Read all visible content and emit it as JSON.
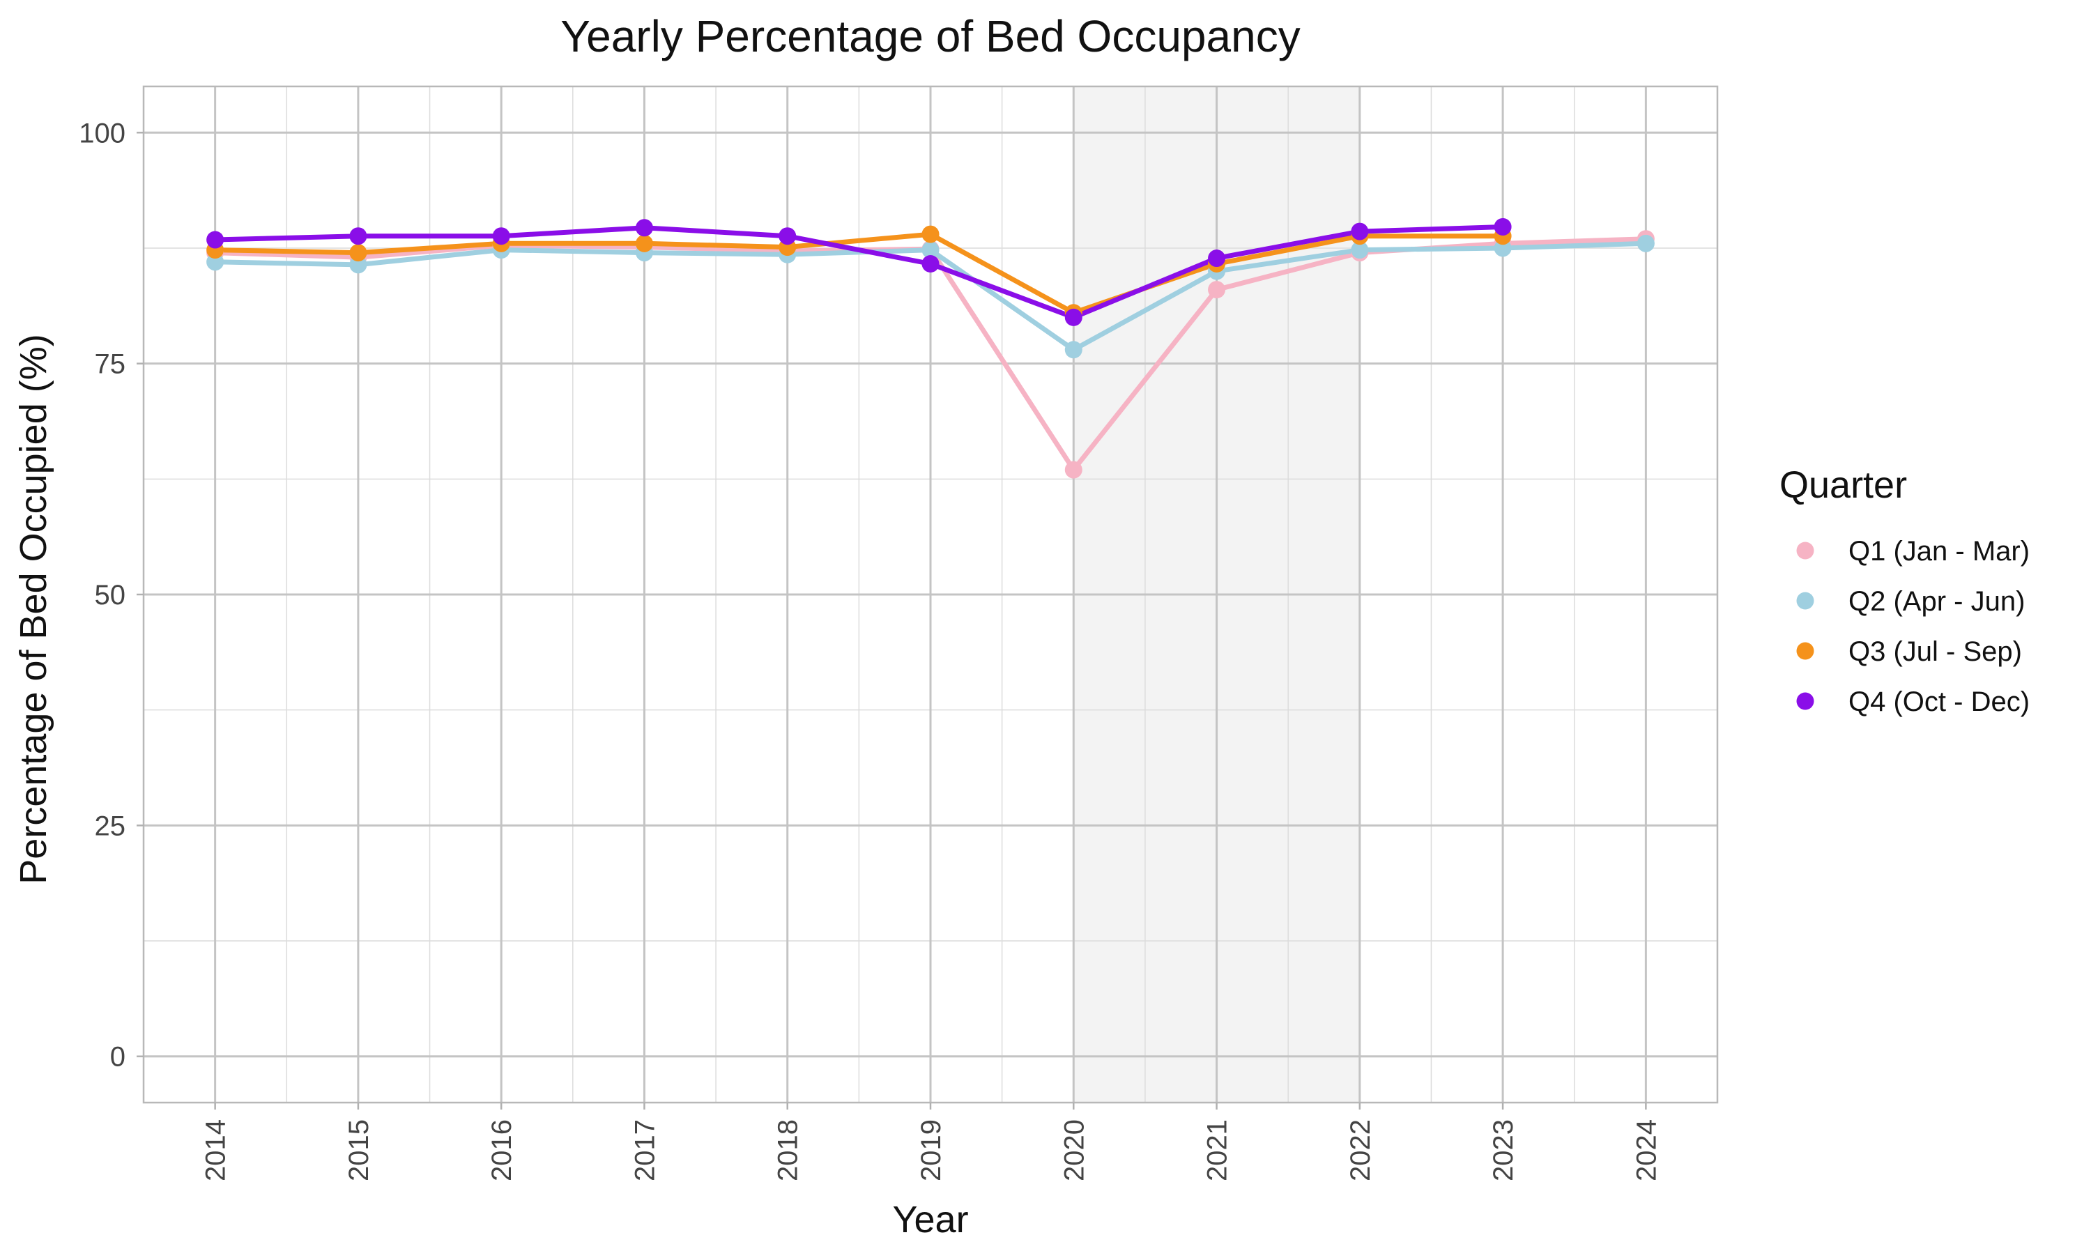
{
  "chart_data": {
    "type": "line",
    "title": "Yearly Percentage of Bed Occupancy",
    "xlabel": "Year",
    "ylabel": "Percentage of Bed Occupied (%)",
    "x": [
      2014,
      2015,
      2016,
      2017,
      2018,
      2019,
      2020,
      2021,
      2022,
      2023,
      2024
    ],
    "xlim": [
      2013.5,
      2024.5
    ],
    "ylim": [
      -5,
      105
    ],
    "yticks": [
      0,
      25,
      50,
      75,
      100
    ],
    "grid": true,
    "shaded_region": {
      "from": 2020,
      "to": 2022,
      "color": "#f3f3f3"
    },
    "legend": {
      "title": "Quarter",
      "position": "right"
    },
    "series": [
      {
        "name": "Q1 (Jan - Mar)",
        "color": "#f6b3c4",
        "values": [
          87.0,
          86.5,
          87.8,
          87.6,
          87.2,
          87.4,
          63.5,
          83.0,
          87.0,
          88.0,
          88.5
        ]
      },
      {
        "name": "Q2 (Apr - Jun)",
        "color": "#9fcfe0",
        "values": [
          86.0,
          85.7,
          87.3,
          87.0,
          86.8,
          87.3,
          76.5,
          85.0,
          87.3,
          87.5,
          88.0
        ]
      },
      {
        "name": "Q3 (Jul - Sep)",
        "color": "#f5921b",
        "values": [
          87.3,
          87.0,
          88.0,
          88.0,
          87.6,
          89.0,
          80.5,
          85.8,
          88.8,
          88.8,
          null
        ]
      },
      {
        "name": "Q4 (Oct - Dec)",
        "color": "#8a0ee8",
        "values": [
          88.4,
          88.8,
          88.8,
          89.7,
          88.8,
          85.8,
          80.0,
          86.4,
          89.3,
          89.8,
          null
        ]
      }
    ]
  }
}
